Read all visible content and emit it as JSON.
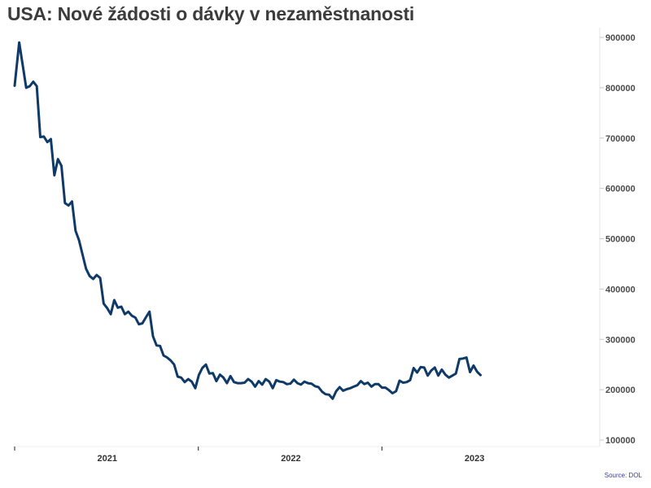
{
  "chart_data": {
    "type": "line",
    "title": "USA: Nové žádosti o dávky v nezaměstnanosti",
    "source": "Source: DOL",
    "xlabel": "",
    "ylabel": "",
    "x_ticks": [
      {
        "label": "2021",
        "date": "2021-01-01",
        "divider": "2020-07-01"
      },
      {
        "label": "2022",
        "date": "2022-01-01",
        "divider": "2021-07-01"
      },
      {
        "label": "2023",
        "date": "2023-01-01",
        "divider": "2022-07-01"
      }
    ],
    "y_ticks": [
      100000,
      200000,
      300000,
      400000,
      500000,
      600000,
      700000,
      800000,
      900000
    ],
    "ylim": [
      100000,
      900000
    ],
    "xlim": [
      "2020-07-01",
      "2023-08-12"
    ],
    "grid": false,
    "line_color": "#0f3a68",
    "series": [
      {
        "points": [
          [
            "2020-07-01",
            804000
          ],
          [
            "2020-07-10",
            890000
          ],
          [
            "2020-07-24",
            800000
          ],
          [
            "2020-07-31",
            803000
          ],
          [
            "2020-08-07",
            812000
          ],
          [
            "2020-08-14",
            803000
          ],
          [
            "2020-08-21",
            702000
          ],
          [
            "2020-08-28",
            703000
          ],
          [
            "2020-09-04",
            692000
          ],
          [
            "2020-09-11",
            698000
          ],
          [
            "2020-09-18",
            626000
          ],
          [
            "2020-09-25",
            658000
          ],
          [
            "2020-10-02",
            645000
          ],
          [
            "2020-10-09",
            571000
          ],
          [
            "2020-10-16",
            566000
          ],
          [
            "2020-10-23",
            574000
          ],
          [
            "2020-10-30",
            516000
          ],
          [
            "2020-11-06",
            497000
          ],
          [
            "2020-11-13",
            468000
          ],
          [
            "2020-11-20",
            440000
          ],
          [
            "2020-11-27",
            426000
          ],
          [
            "2020-12-04",
            420000
          ],
          [
            "2020-12-11",
            428000
          ],
          [
            "2020-12-18",
            422000
          ],
          [
            "2020-12-25",
            371000
          ],
          [
            "2021-01-01",
            362000
          ],
          [
            "2021-01-08",
            350000
          ],
          [
            "2021-01-15",
            378000
          ],
          [
            "2021-01-22",
            363000
          ],
          [
            "2021-01-29",
            365000
          ],
          [
            "2021-02-05",
            350000
          ],
          [
            "2021-02-12",
            355000
          ],
          [
            "2021-02-19",
            347000
          ],
          [
            "2021-02-26",
            343000
          ],
          [
            "2021-03-05",
            330000
          ],
          [
            "2021-03-12",
            332000
          ],
          [
            "2021-03-19",
            344000
          ],
          [
            "2021-03-26",
            355000
          ],
          [
            "2021-04-02",
            306000
          ],
          [
            "2021-04-09",
            288000
          ],
          [
            "2021-04-16",
            287000
          ],
          [
            "2021-04-23",
            268000
          ],
          [
            "2021-04-30",
            264000
          ],
          [
            "2021-05-07",
            258000
          ],
          [
            "2021-05-14",
            250000
          ],
          [
            "2021-05-21",
            226000
          ],
          [
            "2021-05-28",
            224000
          ],
          [
            "2021-06-04",
            215000
          ],
          [
            "2021-06-11",
            221000
          ],
          [
            "2021-06-18",
            216000
          ],
          [
            "2021-06-25",
            203000
          ],
          [
            "2021-07-02",
            229000
          ],
          [
            "2021-07-09",
            243000
          ],
          [
            "2021-07-16",
            250000
          ],
          [
            "2021-07-23",
            232000
          ],
          [
            "2021-07-30",
            233000
          ],
          [
            "2021-08-06",
            217000
          ],
          [
            "2021-08-13",
            230000
          ],
          [
            "2021-08-20",
            224000
          ],
          [
            "2021-08-27",
            213000
          ],
          [
            "2021-09-03",
            227000
          ],
          [
            "2021-09-10",
            215000
          ],
          [
            "2021-09-17",
            213000
          ],
          [
            "2021-09-24",
            213000
          ],
          [
            "2021-10-01",
            214000
          ],
          [
            "2021-10-08",
            221000
          ],
          [
            "2021-10-15",
            216000
          ],
          [
            "2021-10-22",
            206000
          ],
          [
            "2021-10-29",
            217000
          ],
          [
            "2021-11-05",
            210000
          ],
          [
            "2021-11-12",
            221000
          ],
          [
            "2021-11-19",
            216000
          ],
          [
            "2021-11-26",
            203000
          ],
          [
            "2021-12-03",
            219000
          ],
          [
            "2021-12-10",
            216000
          ],
          [
            "2021-12-17",
            215000
          ],
          [
            "2021-12-24",
            211000
          ],
          [
            "2021-12-31",
            212000
          ],
          [
            "2022-01-07",
            220000
          ],
          [
            "2022-01-14",
            213000
          ],
          [
            "2022-01-21",
            210000
          ],
          [
            "2022-01-28",
            216000
          ],
          [
            "2022-02-04",
            213000
          ],
          [
            "2022-02-11",
            212000
          ],
          [
            "2022-02-18",
            207000
          ],
          [
            "2022-02-25",
            205000
          ],
          [
            "2022-03-04",
            196000
          ],
          [
            "2022-03-11",
            191000
          ],
          [
            "2022-03-18",
            190000
          ],
          [
            "2022-03-25",
            182000
          ],
          [
            "2022-04-01",
            197000
          ],
          [
            "2022-04-08",
            205000
          ],
          [
            "2022-04-15",
            198000
          ],
          [
            "2022-04-22",
            201000
          ],
          [
            "2022-04-29",
            203000
          ],
          [
            "2022-05-06",
            206000
          ],
          [
            "2022-05-13",
            209000
          ],
          [
            "2022-05-20",
            217000
          ],
          [
            "2022-05-27",
            211000
          ],
          [
            "2022-06-03",
            214000
          ],
          [
            "2022-06-10",
            206000
          ],
          [
            "2022-06-17",
            211000
          ],
          [
            "2022-06-24",
            211000
          ],
          [
            "2022-07-01",
            204000
          ],
          [
            "2022-07-08",
            204000
          ],
          [
            "2022-07-15",
            199000
          ],
          [
            "2022-07-22",
            193000
          ],
          [
            "2022-07-29",
            197000
          ],
          [
            "2022-08-05",
            218000
          ],
          [
            "2022-08-12",
            214000
          ],
          [
            "2022-08-19",
            215000
          ],
          [
            "2022-08-26",
            219000
          ],
          [
            "2022-09-02",
            243000
          ],
          [
            "2022-09-09",
            234000
          ],
          [
            "2022-09-16",
            245000
          ],
          [
            "2022-09-23",
            244000
          ],
          [
            "2022-09-30",
            228000
          ],
          [
            "2022-10-07",
            238000
          ],
          [
            "2022-10-14",
            244000
          ],
          [
            "2022-10-21",
            228000
          ],
          [
            "2022-10-28",
            240000
          ],
          [
            "2022-11-04",
            230000
          ],
          [
            "2022-11-11",
            224000
          ],
          [
            "2022-11-18",
            228000
          ],
          [
            "2022-11-25",
            232000
          ],
          [
            "2022-12-02",
            261000
          ],
          [
            "2022-12-09",
            262000
          ],
          [
            "2022-12-16",
            264000
          ],
          [
            "2022-12-23",
            235000
          ],
          [
            "2022-12-30",
            248000
          ],
          [
            "2023-01-06",
            236000
          ],
          [
            "2023-01-13",
            229000
          ]
        ]
      }
    ]
  }
}
